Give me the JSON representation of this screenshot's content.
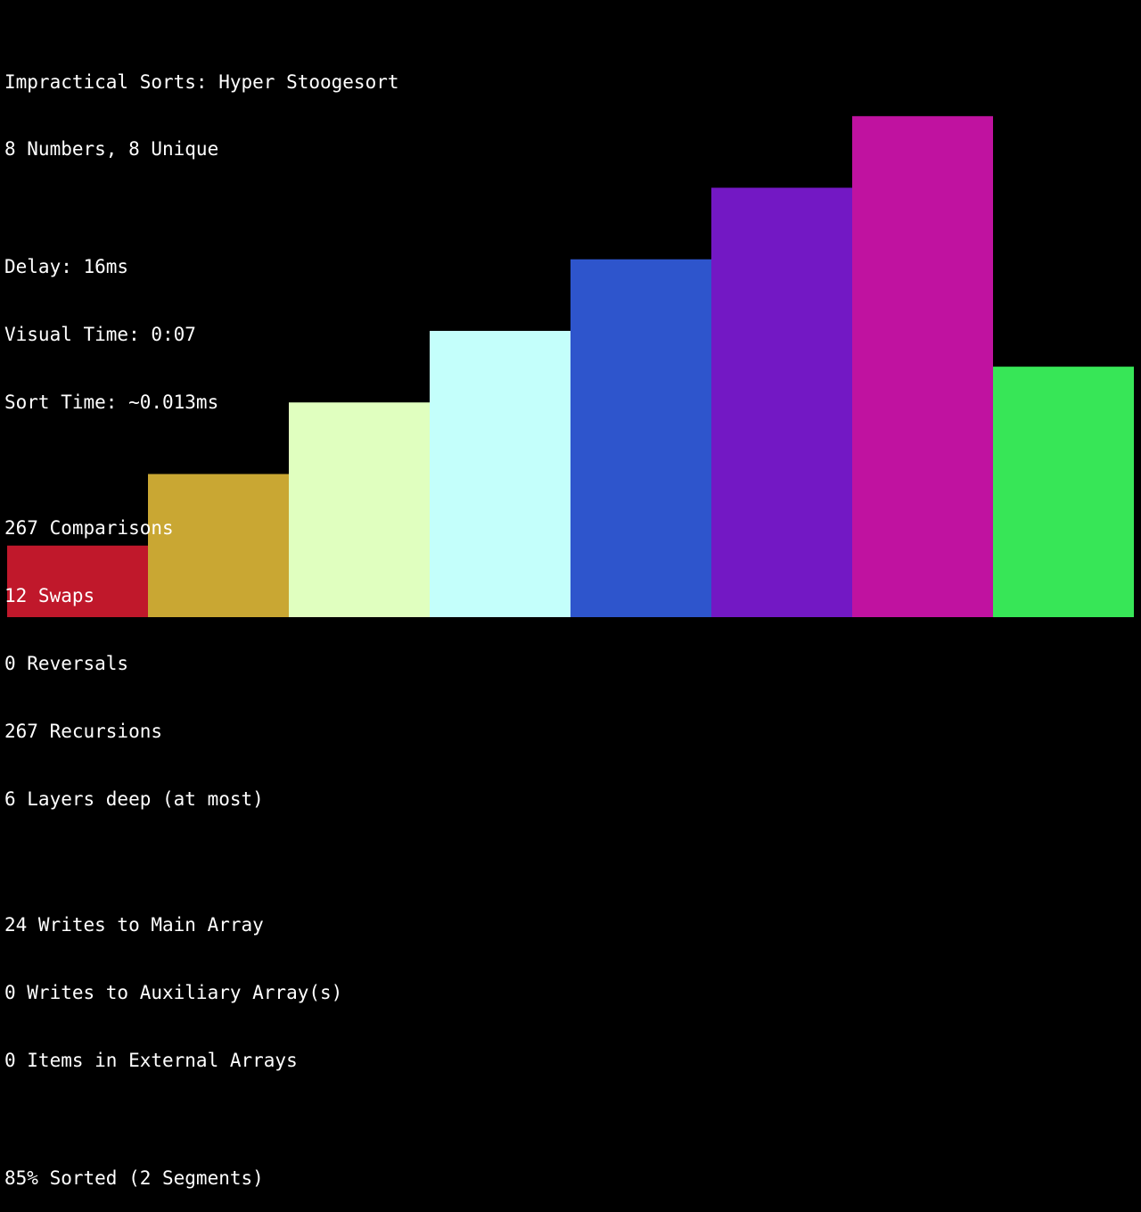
{
  "title": "Impractical Sorts: Hyper Stoogesort",
  "summary": "8 Numbers, 8 Unique",
  "timing": {
    "delay": "Delay: 16ms",
    "visual_time": "Visual Time: 0:07",
    "sort_time": "Sort Time: ~0.013ms"
  },
  "counters": {
    "comparisons": "267 Comparisons",
    "swaps": "12 Swaps",
    "reversals": "0 Reversals",
    "recursions": "267 Recursions",
    "layers": "6 Layers deep (at most)"
  },
  "writes": {
    "main": "24 Writes to Main Array",
    "auxiliary": "0 Writes to Auxiliary Array(s)",
    "external": "0 Items in External Arrays"
  },
  "sorted_status": "85% Sorted (2 Segments)",
  "chart_data": {
    "type": "bar",
    "values": [
      1,
      2,
      3,
      4,
      5,
      6,
      7,
      3.5
    ],
    "colors": [
      "#c0182b",
      "#c9a733",
      "#e0ffbf",
      "#c4fffb",
      "#2e55cc",
      "#7318c4",
      "#c012a0",
      "#37e657"
    ],
    "ylim": [
      0,
      8
    ]
  }
}
